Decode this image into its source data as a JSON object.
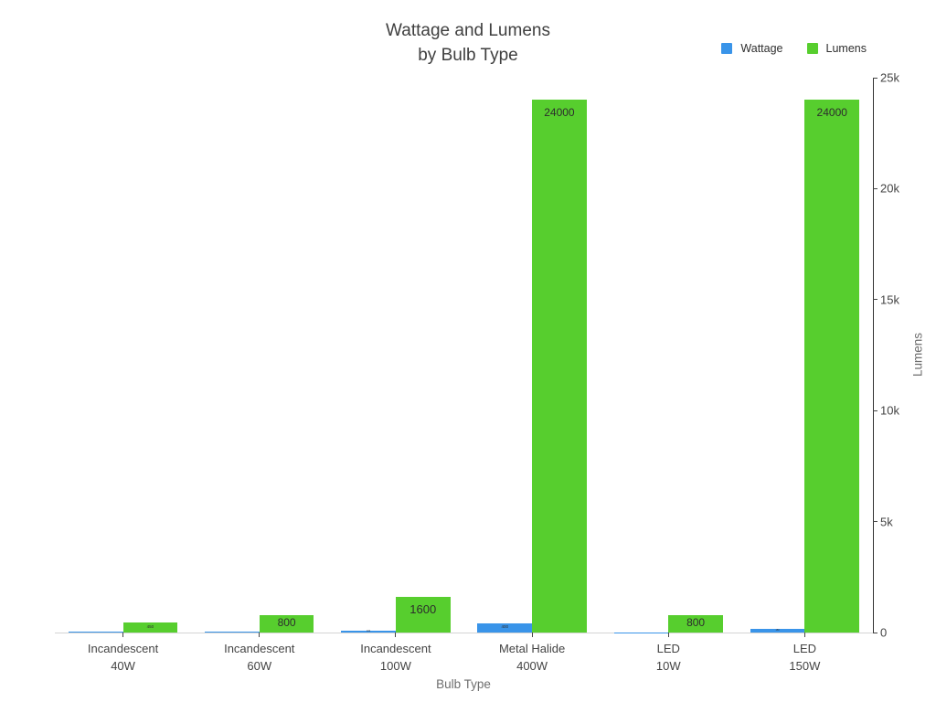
{
  "title": {
    "line1": "Wattage and Lumens",
    "line2": "by Bulb Type"
  },
  "legend": {
    "items": [
      {
        "label": "Wattage",
        "color": "#3994e9"
      },
      {
        "label": "Lumens",
        "color": "#57ce2e"
      }
    ]
  },
  "axes": {
    "x": {
      "title": "Bulb Type"
    },
    "y": {
      "title": "Lumens",
      "side": "right",
      "ticks": [
        {
          "label": "0",
          "value": 0
        },
        {
          "label": "5k",
          "value": 5000
        },
        {
          "label": "10k",
          "value": 10000
        },
        {
          "label": "15k",
          "value": 15000
        },
        {
          "label": "20k",
          "value": 20000
        },
        {
          "label": "25k",
          "value": 25000
        }
      ]
    }
  },
  "chart_data": {
    "type": "bar",
    "title": "Wattage and Lumens by Bulb Type",
    "categories": [
      "Incandescent 40W",
      "Incandescent 60W",
      "Incandescent 100W",
      "Metal Halide 400W",
      "LED 10W",
      "LED 150W"
    ],
    "category_labels": [
      [
        "Incandescent",
        "40W"
      ],
      [
        "Incandescent",
        "60W"
      ],
      [
        "Incandescent",
        "100W"
      ],
      [
        "Metal Halide",
        "400W"
      ],
      [
        "LED",
        "10W"
      ],
      [
        "LED",
        "150W"
      ]
    ],
    "series": [
      {
        "name": "Wattage",
        "color": "#3994e9",
        "values": [
          40,
          60,
          100,
          400,
          10,
          150
        ]
      },
      {
        "name": "Lumens",
        "color": "#57ce2e",
        "values": [
          450,
          800,
          1600,
          24000,
          800,
          24000
        ]
      }
    ],
    "bar_value_labels": true,
    "xlabel": "Bulb Type",
    "ylabel": "Lumens",
    "ylim": [
      0,
      25000
    ],
    "grid": false,
    "legend_position": "top-right"
  }
}
